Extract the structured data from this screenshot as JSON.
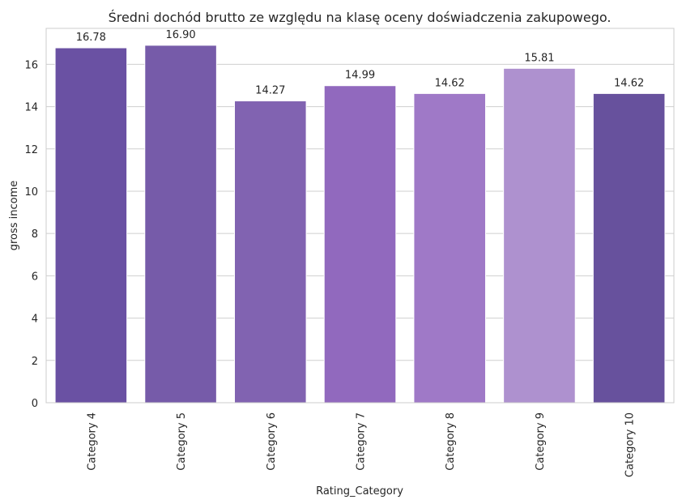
{
  "chart_data": {
    "type": "bar",
    "title": "Średni dochód brutto ze względu na klasę oceny doświadczenia zakupowego.",
    "xlabel": "Rating_Category",
    "ylabel": "gross income",
    "categories": [
      "Category 4",
      "Category 5",
      "Category 6",
      "Category 7",
      "Category 8",
      "Category 9",
      "Category 10"
    ],
    "values": [
      16.78,
      16.9,
      14.27,
      14.99,
      14.62,
      15.81,
      14.62
    ],
    "value_labels": [
      "16.78",
      "16.90",
      "14.27",
      "14.99",
      "14.62",
      "15.81",
      "14.62"
    ],
    "colors": [
      "#6a51a3",
      "#765ba9",
      "#8163b1",
      "#9169be",
      "#9f79c7",
      "#ae91cf",
      "#67519d"
    ],
    "ylim": [
      0,
      17.7
    ],
    "yticks": [
      0,
      2,
      4,
      6,
      8,
      10,
      12,
      14,
      16
    ],
    "grid": "horizontal",
    "legend": "none"
  }
}
